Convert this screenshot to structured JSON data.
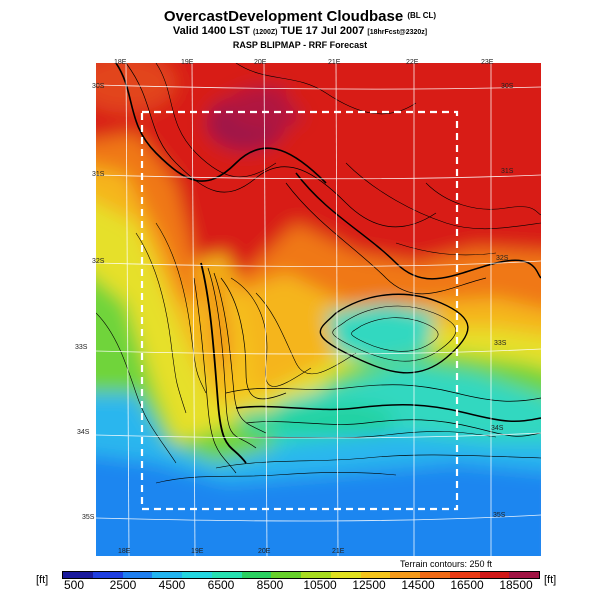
{
  "header": {
    "title_main": "OvercastDevelopment Cloudbase",
    "title_suffix": "(BL CL)",
    "valid_prefix": "Valid 1400 LST",
    "valid_code": "(1200Z)",
    "valid_date": "TUE 17 Jul 2007",
    "valid_fcst": "[18hrFcst@2320z]",
    "subtitle": "RASP BLIPMAP - RRF Forecast"
  },
  "axes": {
    "lon_top": [
      "18E",
      "19E",
      "20E",
      "21E",
      "22E",
      "23E"
    ],
    "lon_bottom": [
      "18E",
      "19E",
      "20E",
      "21E"
    ],
    "lat_left": [
      "30S",
      "31S",
      "32S",
      "33S",
      "34S",
      "35S"
    ],
    "lat_right": [
      "30S",
      "31S",
      "32S",
      "33S",
      "34S",
      "35S"
    ]
  },
  "terrain_note": "Terrain contours: 250 ft",
  "colorbar": {
    "unit_left": "[ft]",
    "unit_right": "[ft]",
    "labels": [
      "500",
      "2500",
      "4500",
      "6500",
      "8500",
      "10500",
      "12500",
      "14500",
      "16500",
      "18500"
    ],
    "colors": [
      "#1a1a9c",
      "#1f3fe0",
      "#1f7ff0",
      "#22b4f0",
      "#24d6e0",
      "#26e0b0",
      "#2ad060",
      "#66d02a",
      "#a8dc20",
      "#e0e020",
      "#f5c41c",
      "#f59a1a",
      "#f06a16",
      "#e83a14",
      "#d01818",
      "#a01444"
    ]
  }
}
